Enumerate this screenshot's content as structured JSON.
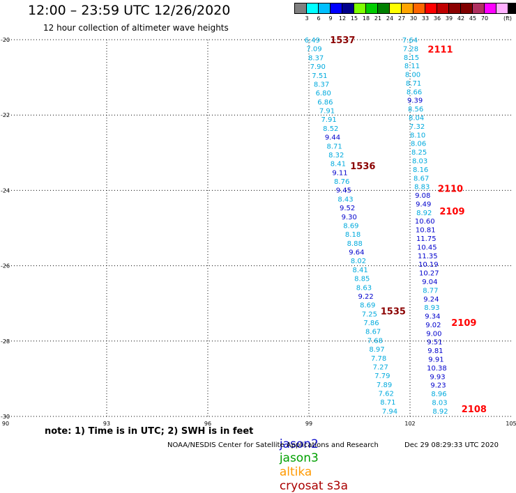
{
  "header": {
    "title": "12:00 – 23:59 UTC 12/26/2020",
    "subtitle": "12 hour collection of altimeter wave heights"
  },
  "colorbar": {
    "colors": [
      "#808080",
      "#00ffff",
      "#00bfff",
      "#0000ff",
      "#00008b",
      "#7fff00",
      "#00cd00",
      "#008000",
      "#ffff00",
      "#ffa500",
      "#ff6600",
      "#ff0000",
      "#c00000",
      "#8b0000",
      "#800000",
      "#b03060",
      "#ff00ff",
      "#ffb0ff",
      "#000000"
    ],
    "labels": [
      "3",
      "6",
      "9",
      "12",
      "15",
      "18",
      "21",
      "24",
      "27",
      "30",
      "33",
      "36",
      "39",
      "42",
      "45",
      "70"
    ],
    "unit": "(ft)"
  },
  "footer": {
    "note": "note: 1) Time is in UTC; 2) SWH is in feet",
    "satellites": [
      {
        "name": "jason2",
        "color": "#1010cc"
      },
      {
        "name": "jason3",
        "color": "#00a000"
      },
      {
        "name": "altika",
        "color": "#ff9900"
      },
      {
        "name": "cryosat s3a",
        "color": "#aa0000"
      }
    ],
    "credit": "NOAA/NESDIS Center for Satellite Applications and Research",
    "timestamp": "Dec 29 08:29:33 UTC 2020"
  },
  "chart_data": {
    "type": "scatter",
    "title": "12:00 – 23:59 UTC 12/26/2020",
    "subtitle": "12 hour collection of altimeter wave heights",
    "xlim": [
      90,
      105
    ],
    "ylim": [
      -30,
      -20
    ],
    "x_ticks": [
      "90",
      "93",
      "96",
      "99",
      "102",
      "105"
    ],
    "y_ticks": [
      "-20",
      "-22",
      "-24",
      "-26",
      "-28",
      "-30"
    ],
    "grid": true,
    "value_colors": {
      "mid": "#00aadd",
      "high": "#0000cc"
    },
    "tracks": [
      {
        "x_start": 99.1,
        "x_end": 101.4,
        "y_start": -20.0,
        "y_end": -29.85,
        "values": [
          "6.49",
          "7.09",
          "8.37",
          "7.90",
          "7.51",
          "8.37",
          "6.80",
          "6.86",
          "7.91",
          "7.91",
          "8.52",
          "9.44",
          "8.71",
          "8.32",
          "8.41",
          "9.11",
          "8.76",
          "9.45",
          "8.43",
          "9.52",
          "9.30",
          "8.69",
          "8.18",
          "8.88",
          "9.64",
          "8.02",
          "8.41",
          "8.85",
          "8.63",
          "9.22",
          "8.69",
          "7.25",
          "7.86",
          "8.67",
          "7.68",
          "8.97",
          "7.78",
          "7.27",
          "7.79",
          "7.89",
          "7.62",
          "8.71",
          "7.94"
        ]
      },
      {
        "x_start": 102.0,
        "x_end": 102.9,
        "y_start": -20.0,
        "y_end": -29.85,
        "values": [
          "7.64",
          "7.28",
          "8.15",
          "8.11",
          "8.00",
          "8.71",
          "8.66",
          "9.39",
          "8.56",
          "8.04",
          "7.32",
          "8.10",
          "8.06",
          "8.25",
          "8.03",
          "8.16",
          "8.67",
          "8.83",
          "9.08",
          "9.49",
          "8.92",
          "10.60",
          "10.81",
          "11.75",
          "10.45",
          "11.35",
          "10.19",
          "10.27",
          "9.04",
          "8.77",
          "9.24",
          "8.93",
          "9.34",
          "9.02",
          "9.00",
          "9.51",
          "9.81",
          "9.91",
          "10.38",
          "9.93",
          "9.23",
          "8.96",
          "8.03",
          "8.92"
        ]
      }
    ],
    "time_labels": [
      {
        "label": "1537",
        "x": 100.0,
        "y": -20.0,
        "color": "#8b0000"
      },
      {
        "label": "1536",
        "x": 100.6,
        "y": -23.35,
        "color": "#8b0000"
      },
      {
        "label": "1535",
        "x": 101.5,
        "y": -27.2,
        "color": "#8b0000"
      },
      {
        "label": "2111",
        "x": 102.9,
        "y": -20.25,
        "color": "#ff0000"
      },
      {
        "label": "2110",
        "x": 103.2,
        "y": -23.95,
        "color": "#ff0000"
      },
      {
        "label": "2109",
        "x": 103.25,
        "y": -24.55,
        "color": "#ff0000"
      },
      {
        "label": "2109",
        "x": 103.6,
        "y": -27.5,
        "color": "#ff0000"
      },
      {
        "label": "2108",
        "x": 103.9,
        "y": -29.8,
        "color": "#ff0000"
      }
    ]
  }
}
